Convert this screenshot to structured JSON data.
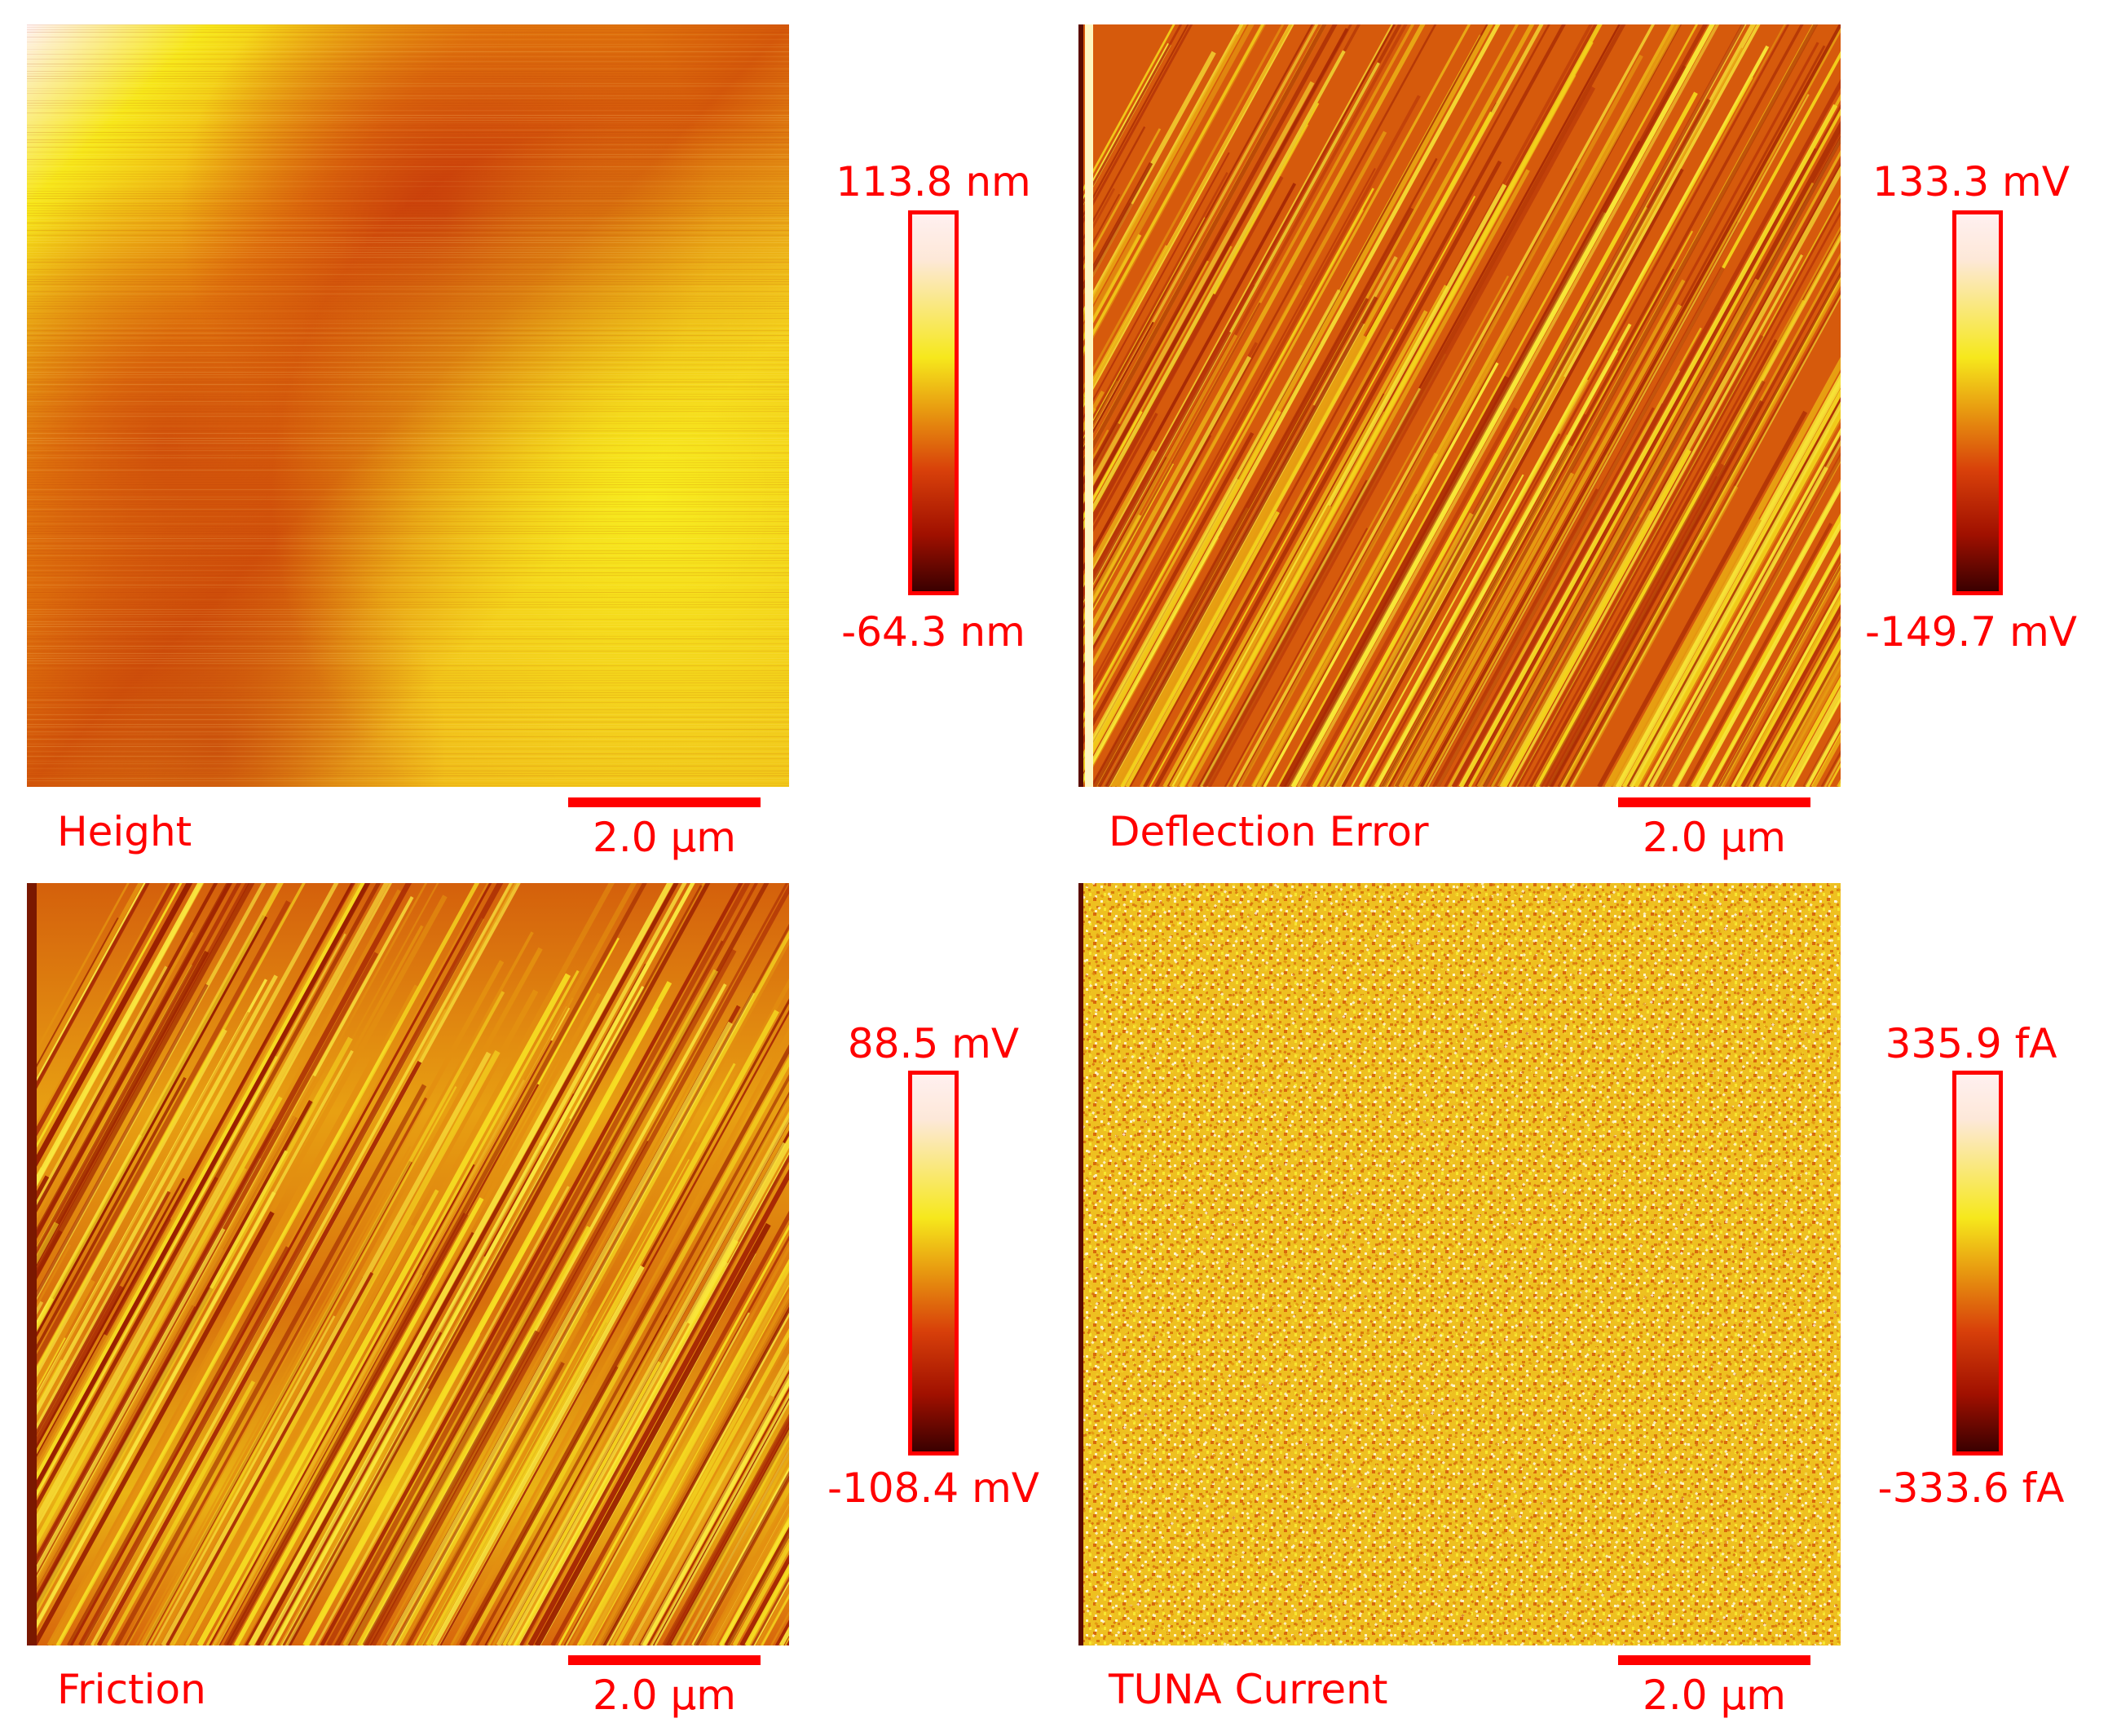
{
  "accent_color": "#ff0000",
  "panels": [
    {
      "title": "Height",
      "scale_bar": "2.0 µm",
      "colorbar": {
        "max": "113.8 nm",
        "min": "-64.3 nm"
      },
      "texture": "height-map"
    },
    {
      "title": "Deflection Error",
      "scale_bar": "2.0 µm",
      "colorbar": {
        "max": "133.3 mV",
        "min": "-149.7 mV"
      },
      "texture": "diagonal-streaks"
    },
    {
      "title": "Friction",
      "scale_bar": "2.0 µm",
      "colorbar": {
        "max": "88.5 mV",
        "min": "-108.4 mV"
      },
      "texture": "diagonal-streaks"
    },
    {
      "title": "TUNA Current",
      "scale_bar": "2.0 µm",
      "colorbar": {
        "max": "335.9 fA",
        "min": "-333.6 fA"
      },
      "texture": "noise"
    }
  ]
}
